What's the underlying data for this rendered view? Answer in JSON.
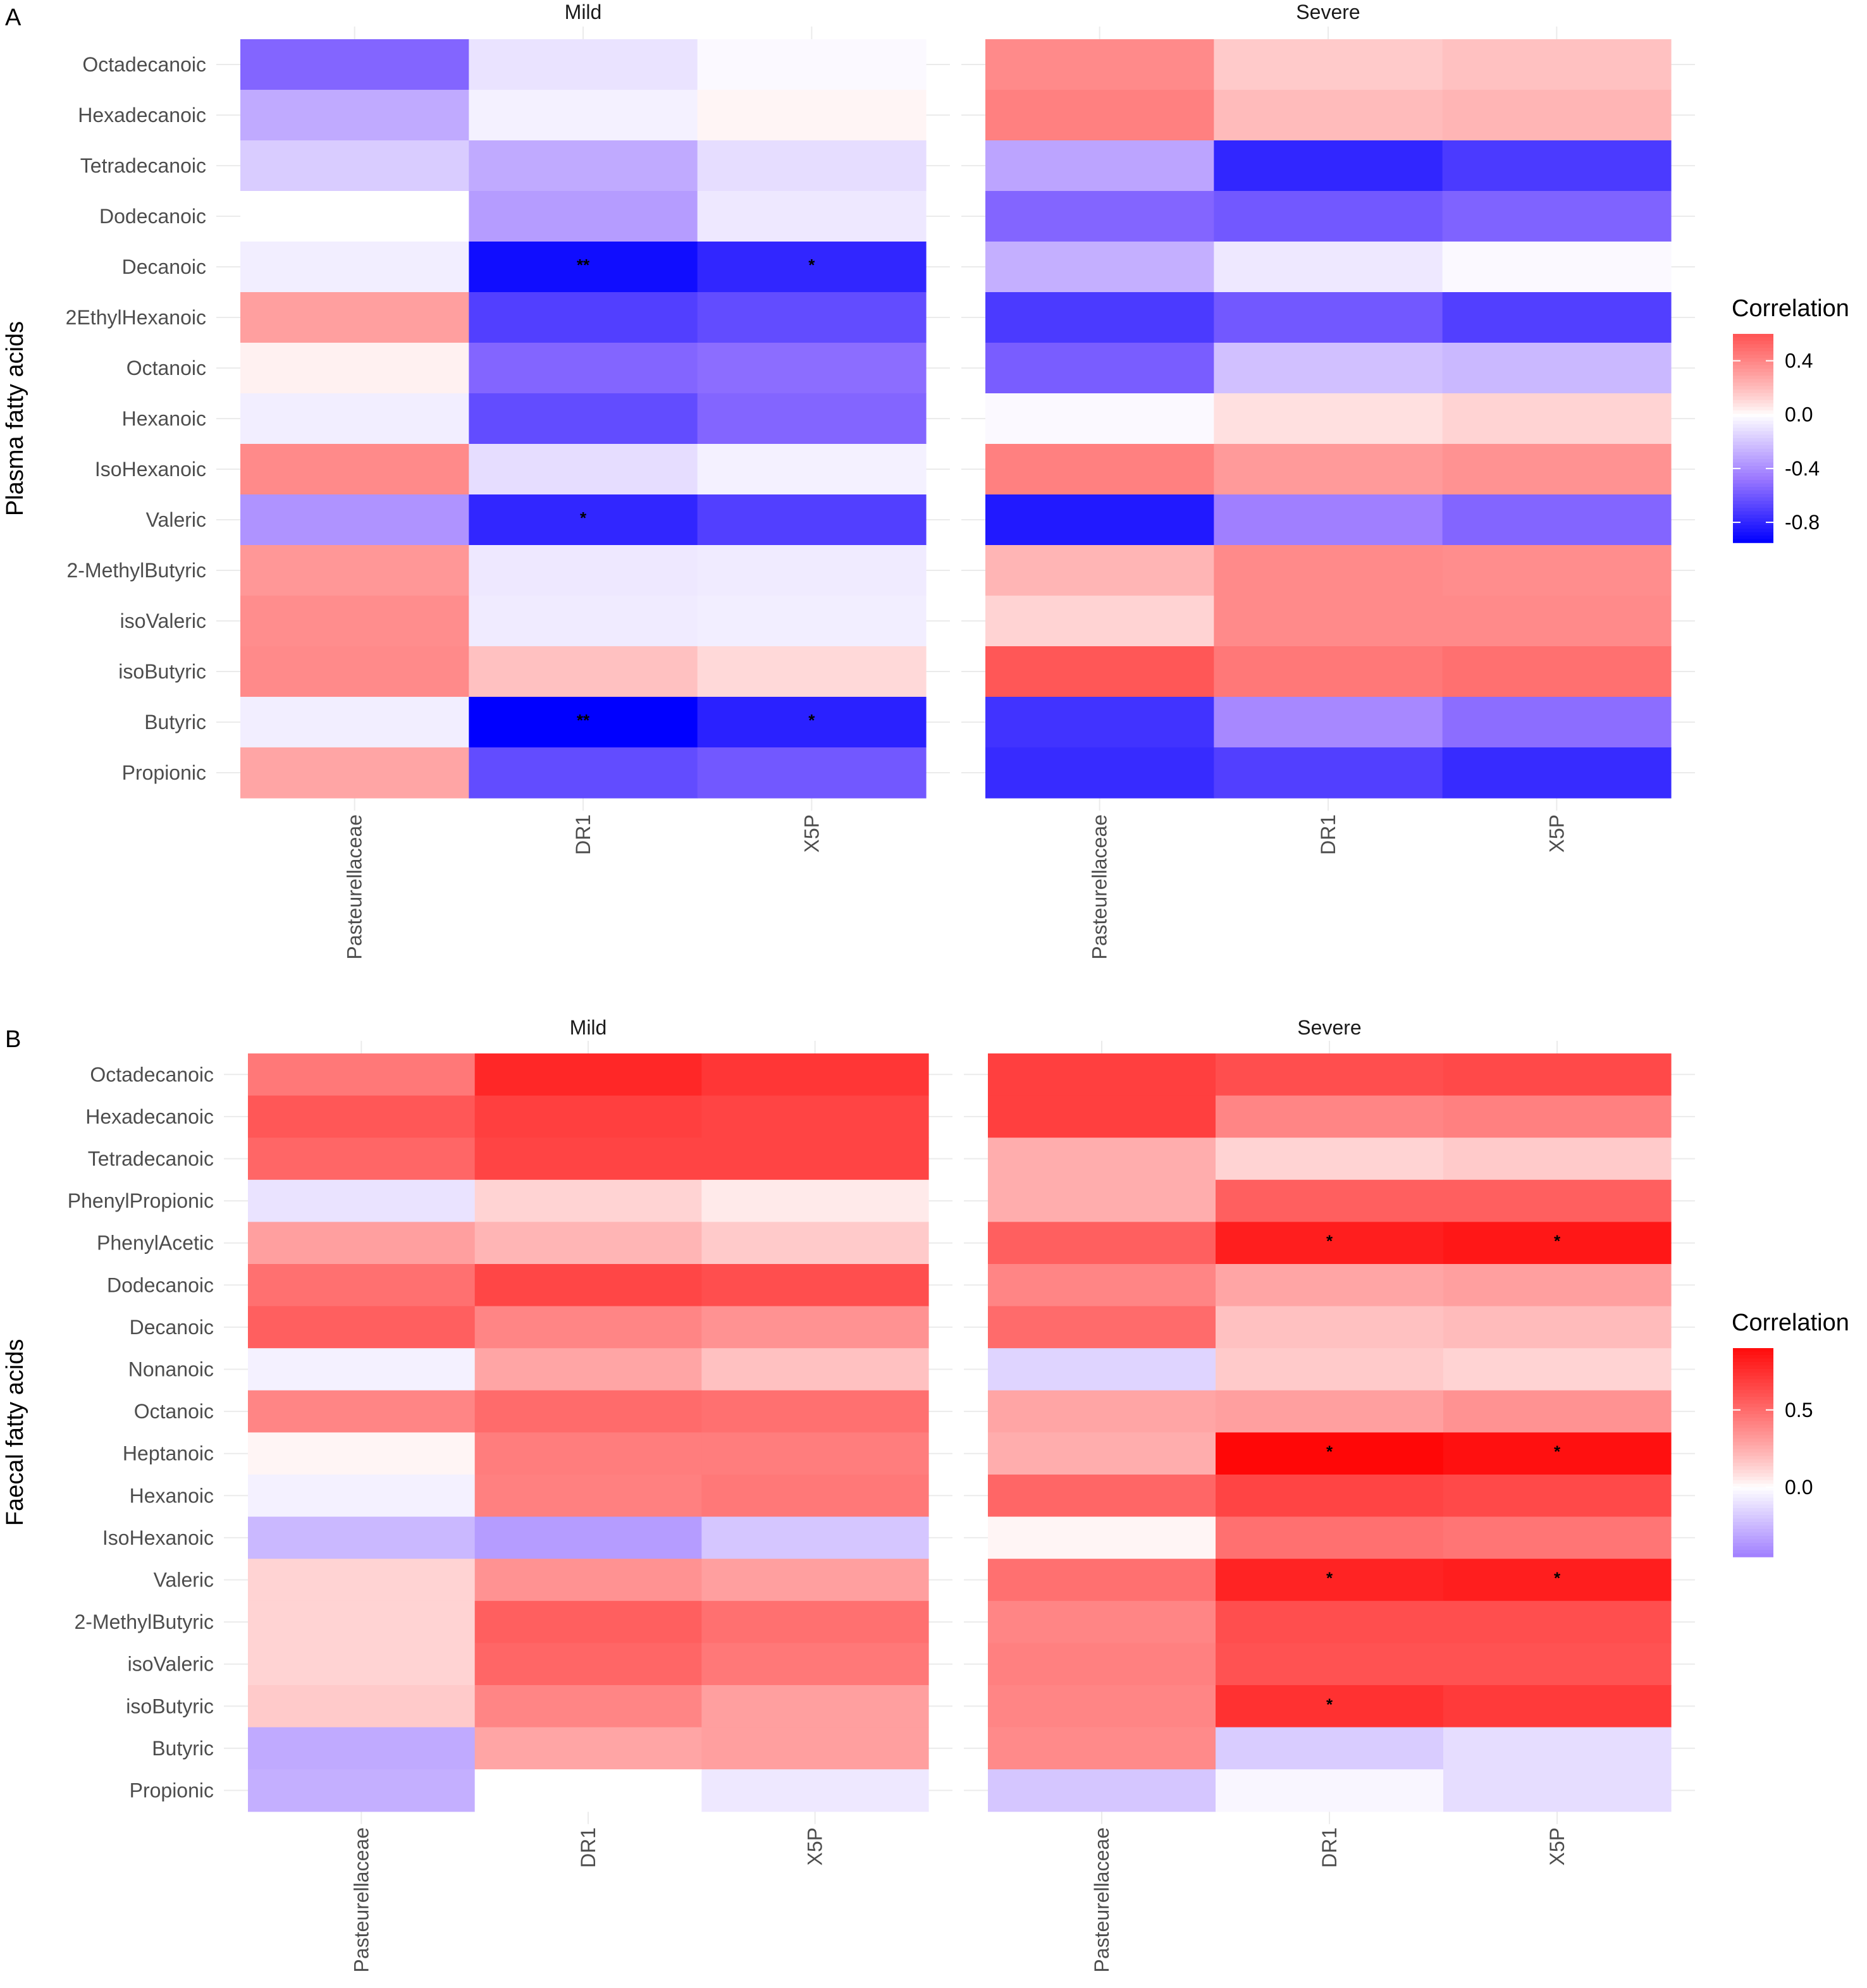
{
  "chart_data": [
    {
      "type": "heatmap",
      "panel": "A",
      "ylabel": "Plasma fatty acids",
      "legend_title": "Correlation",
      "legend_ticks": [
        0.4,
        0.0,
        -0.4,
        -0.8
      ],
      "legend_tick_labels": [
        "0.4",
        "0.0",
        "-0.4",
        "-0.8"
      ],
      "color_range": [
        -0.95,
        0.6
      ],
      "columns": [
        "Pasteurellaceae",
        "DR1",
        "X5P"
      ],
      "rows": [
        "Octadecanoic",
        "Hexadecanoic",
        "Tetradecanoic",
        "Dodecanoic",
        "Decanoic",
        "2EthylHexanoic",
        "Octanoic",
        "Hexanoic",
        "IsoHexanoic",
        "Valeric",
        "2-MethylButyric",
        "isoValeric",
        "isoButyric",
        "Butyric",
        "Propionic"
      ],
      "facets": [
        {
          "title": "Mild",
          "values": [
            [
              -0.55,
              -0.1,
              -0.02
            ],
            [
              -0.3,
              -0.05,
              0.02
            ],
            [
              -0.18,
              -0.3,
              -0.12
            ],
            [
              0.0,
              -0.35,
              -0.08
            ],
            [
              -0.06,
              -0.9,
              -0.8
            ],
            [
              0.3,
              -0.7,
              -0.65
            ],
            [
              0.03,
              -0.55,
              -0.52
            ],
            [
              -0.06,
              -0.65,
              -0.55
            ],
            [
              0.38,
              -0.12,
              -0.05
            ],
            [
              -0.38,
              -0.8,
              -0.7
            ],
            [
              0.33,
              -0.08,
              -0.07
            ],
            [
              0.37,
              -0.07,
              -0.06
            ],
            [
              0.38,
              0.18,
              0.1
            ],
            [
              -0.06,
              -0.95,
              -0.82
            ],
            [
              0.28,
              -0.65,
              -0.6
            ]
          ],
          "stars": [
            [
              "",
              "",
              ""
            ],
            [
              "",
              "",
              ""
            ],
            [
              "",
              "",
              ""
            ],
            [
              "",
              "",
              ""
            ],
            [
              "",
              "**",
              "*"
            ],
            [
              "",
              "",
              ""
            ],
            [
              "",
              "",
              ""
            ],
            [
              "",
              "",
              ""
            ],
            [
              "",
              "",
              ""
            ],
            [
              "",
              "*",
              ""
            ],
            [
              "",
              "",
              ""
            ],
            [
              "",
              "",
              ""
            ],
            [
              "",
              "",
              ""
            ],
            [
              "",
              "**",
              "*"
            ],
            [
              "",
              "",
              ""
            ]
          ]
        },
        {
          "title": "Severe",
          "values": [
            [
              0.38,
              0.15,
              0.18
            ],
            [
              0.42,
              0.2,
              0.22
            ],
            [
              -0.32,
              -0.8,
              -0.72
            ],
            [
              -0.55,
              -0.6,
              -0.56
            ],
            [
              -0.28,
              -0.08,
              -0.02
            ],
            [
              -0.72,
              -0.6,
              -0.7
            ],
            [
              -0.58,
              -0.22,
              -0.25
            ],
            [
              -0.02,
              0.08,
              0.12
            ],
            [
              0.42,
              0.32,
              0.35
            ],
            [
              -0.85,
              -0.45,
              -0.55
            ],
            [
              0.22,
              0.38,
              0.37
            ],
            [
              0.12,
              0.38,
              0.38
            ],
            [
              0.58,
              0.45,
              0.48
            ],
            [
              -0.75,
              -0.42,
              -0.52
            ],
            [
              -0.78,
              -0.7,
              -0.78
            ]
          ],
          "stars": [
            [
              "",
              "",
              ""
            ],
            [
              "",
              "",
              ""
            ],
            [
              "",
              "",
              ""
            ],
            [
              "",
              "",
              ""
            ],
            [
              "",
              "",
              ""
            ],
            [
              "",
              "",
              ""
            ],
            [
              "",
              "",
              ""
            ],
            [
              "",
              "",
              ""
            ],
            [
              "",
              "",
              ""
            ],
            [
              "",
              "",
              ""
            ],
            [
              "",
              "",
              ""
            ],
            [
              "",
              "",
              ""
            ],
            [
              "",
              "",
              ""
            ],
            [
              "",
              "",
              ""
            ],
            [
              "",
              "",
              ""
            ]
          ]
        }
      ]
    },
    {
      "type": "heatmap",
      "panel": "B",
      "ylabel": "Faecal fatty acids",
      "legend_title": "Correlation",
      "legend_ticks": [
        0.5,
        0.0
      ],
      "legend_tick_labels": [
        "0.5",
        "0.0"
      ],
      "color_range": [
        -0.45,
        0.9
      ],
      "columns": [
        "Pasteurellaceae",
        "DR1",
        "X5P"
      ],
      "rows": [
        "Octadecanoic",
        "Hexadecanoic",
        "Tetradecanoic",
        "PhenylPropionic",
        "PhenylAcetic",
        "Dodecanoic",
        "Decanoic",
        "Nonanoic",
        "Octanoic",
        "Heptanoic",
        "Hexanoic",
        "IsoHexanoic",
        "Valeric",
        "2-MethylButyric",
        "isoValeric",
        "isoButyric",
        "Butyric",
        "Propionic"
      ],
      "facets": [
        {
          "title": "Mild",
          "values": [
            [
              0.45,
              0.78,
              0.72
            ],
            [
              0.58,
              0.68,
              0.66
            ],
            [
              0.52,
              0.66,
              0.66
            ],
            [
              -0.1,
              0.12,
              0.05
            ],
            [
              0.3,
              0.22,
              0.15
            ],
            [
              0.48,
              0.65,
              0.62
            ],
            [
              0.55,
              0.4,
              0.35
            ],
            [
              -0.05,
              0.28,
              0.18
            ],
            [
              0.4,
              0.5,
              0.48
            ],
            [
              0.02,
              0.43,
              0.43
            ],
            [
              -0.05,
              0.42,
              0.45
            ],
            [
              -0.25,
              -0.35,
              -0.2
            ],
            [
              0.12,
              0.35,
              0.3
            ],
            [
              0.12,
              0.55,
              0.48
            ],
            [
              0.12,
              0.52,
              0.45
            ],
            [
              0.15,
              0.4,
              0.3
            ],
            [
              -0.3,
              0.28,
              0.3
            ],
            [
              -0.28,
              0.0,
              -0.08
            ]
          ],
          "stars": [
            [
              "",
              "",
              ""
            ],
            [
              "",
              "",
              ""
            ],
            [
              "",
              "",
              ""
            ],
            [
              "",
              "",
              ""
            ],
            [
              "",
              "",
              ""
            ],
            [
              "",
              "",
              ""
            ],
            [
              "",
              "",
              ""
            ],
            [
              "",
              "",
              ""
            ],
            [
              "",
              "",
              ""
            ],
            [
              "",
              "",
              ""
            ],
            [
              "",
              "",
              ""
            ],
            [
              "",
              "",
              ""
            ],
            [
              "",
              "",
              ""
            ],
            [
              "",
              "",
              ""
            ],
            [
              "",
              "",
              ""
            ],
            [
              "",
              "",
              ""
            ],
            [
              "",
              "",
              ""
            ],
            [
              "",
              "",
              ""
            ]
          ]
        },
        {
          "title": "Severe",
          "values": [
            [
              0.68,
              0.62,
              0.64
            ],
            [
              0.68,
              0.4,
              0.42
            ],
            [
              0.25,
              0.12,
              0.15
            ],
            [
              0.25,
              0.55,
              0.55
            ],
            [
              0.55,
              0.82,
              0.85
            ],
            [
              0.4,
              0.28,
              0.3
            ],
            [
              0.5,
              0.18,
              0.2
            ],
            [
              -0.15,
              0.15,
              0.12
            ],
            [
              0.28,
              0.3,
              0.35
            ],
            [
              0.25,
              0.92,
              0.88
            ],
            [
              0.52,
              0.66,
              0.64
            ],
            [
              0.02,
              0.48,
              0.46
            ],
            [
              0.48,
              0.8,
              0.82
            ],
            [
              0.4,
              0.62,
              0.62
            ],
            [
              0.42,
              0.6,
              0.6
            ],
            [
              0.4,
              0.74,
              0.7
            ],
            [
              0.38,
              -0.18,
              -0.12
            ],
            [
              -0.2,
              -0.03,
              -0.12
            ]
          ],
          "stars": [
            [
              "",
              "",
              ""
            ],
            [
              "",
              "",
              ""
            ],
            [
              "",
              "",
              ""
            ],
            [
              "",
              "",
              ""
            ],
            [
              "",
              "*",
              "*"
            ],
            [
              "",
              "",
              ""
            ],
            [
              "",
              "",
              ""
            ],
            [
              "",
              "",
              ""
            ],
            [
              "",
              "",
              ""
            ],
            [
              "",
              "*",
              "*"
            ],
            [
              "",
              "",
              ""
            ],
            [
              "",
              "",
              ""
            ],
            [
              "",
              "*",
              "*"
            ],
            [
              "",
              "",
              ""
            ],
            [
              "",
              "",
              ""
            ],
            [
              "",
              "*",
              ""
            ],
            [
              "",
              "",
              ""
            ],
            [
              "",
              "",
              ""
            ]
          ]
        }
      ]
    }
  ],
  "colors": {
    "low": "#0000ff",
    "mid": "#ffffff",
    "mid_purple": "#9b78ff",
    "high": "#ff0000",
    "gridline": "#ebebeb"
  }
}
